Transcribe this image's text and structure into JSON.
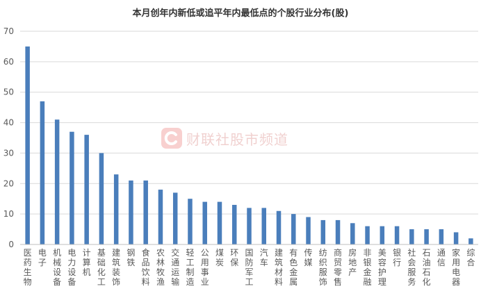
{
  "chart_data": {
    "type": "bar",
    "title": "本月创年内新低或追平年内最低点的个股行业分布(股)",
    "categories": [
      "医药生物",
      "电子",
      "机械设备",
      "电力设备",
      "计算机",
      "基础化工",
      "建筑装饰",
      "钢铁",
      "食品饮料",
      "农林牧渔",
      "交通运输",
      "轻工制造",
      "公用事业",
      "煤炭",
      "环保",
      "国防军工",
      "汽车",
      "建筑材料",
      "有色金属",
      "传媒",
      "纺织服饰",
      "商贸零售",
      "房地产",
      "非银金融",
      "美容护理",
      "银行",
      "社会服务",
      "石油石化",
      "通信",
      "家用电器",
      "综合"
    ],
    "values": [
      65,
      47,
      41,
      37,
      36,
      30,
      23,
      21,
      21,
      18,
      17,
      15,
      14,
      14,
      13,
      12,
      12,
      11,
      10,
      9,
      8,
      8,
      7,
      6,
      6,
      6,
      5,
      5,
      5,
      4,
      2
    ],
    "ylim": [
      0,
      70
    ],
    "yticks": [
      0,
      10,
      20,
      30,
      40,
      50,
      60,
      70
    ],
    "grid": true,
    "legend": "none",
    "colors": {
      "bar": "#4a7ebb",
      "grid": "#d9d9d9",
      "axis": "#bfbfbf",
      "text": "#595959",
      "title": "#333333"
    }
  },
  "watermark": {
    "text": "财联社股市频道",
    "logo_letter": "C",
    "color": "#e0302a"
  }
}
